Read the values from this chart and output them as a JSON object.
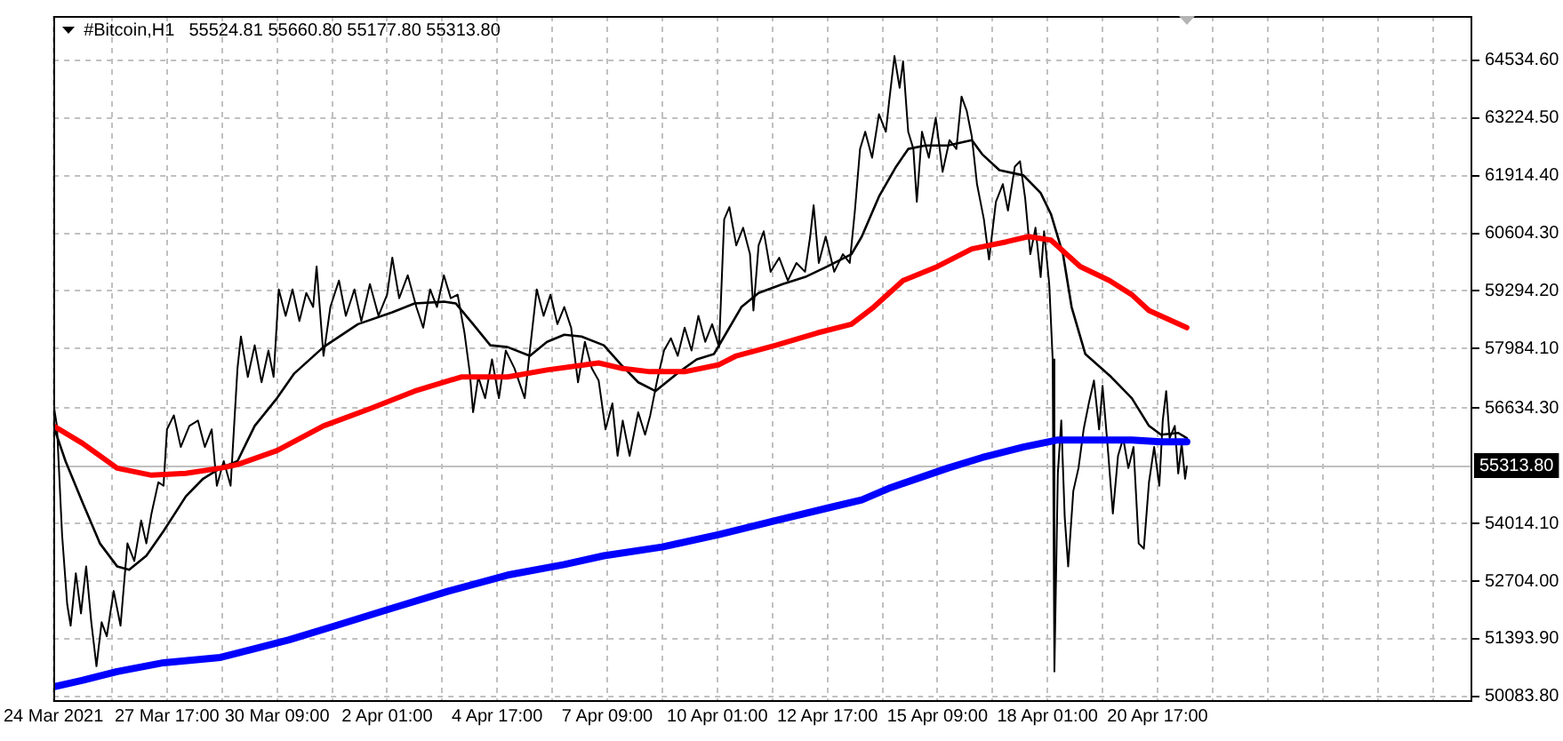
{
  "chart_data": {
    "type": "line",
    "title": "#Bitcoin,H1",
    "subtitle": "55524.81 55660.80 55177.80 55313.80",
    "xlim": [
      "2021-03-24T23:00",
      "2021-04-28T08:00"
    ],
    "xticks": [
      {
        "value": "2021-03-24T23:00",
        "label": "24 Mar 2021"
      },
      {
        "value": "2021-03-26T09:00",
        "label": null
      },
      {
        "value": "2021-03-27T17:00",
        "label": "27 Mar 17:00"
      },
      {
        "value": "2021-03-29T01:00",
        "label": null
      },
      {
        "value": "2021-03-30T09:00",
        "label": "30 Mar 09:00"
      },
      {
        "value": "2021-03-31T17:00",
        "label": null
      },
      {
        "value": "2021-04-02T01:00",
        "label": "2 Apr 01:00"
      },
      {
        "value": "2021-04-03T09:00",
        "label": null
      },
      {
        "value": "2021-04-04T17:00",
        "label": "4 Apr 17:00"
      },
      {
        "value": "2021-04-06T01:00",
        "label": null
      },
      {
        "value": "2021-04-07T09:00",
        "label": "7 Apr 09:00"
      },
      {
        "value": "2021-04-08T17:00",
        "label": null
      },
      {
        "value": "2021-04-10T01:00",
        "label": "10 Apr 01:00"
      },
      {
        "value": "2021-04-11T09:00",
        "label": null
      },
      {
        "value": "2021-04-12T17:00",
        "label": "12 Apr 17:00"
      },
      {
        "value": "2021-04-14T01:00",
        "label": null
      },
      {
        "value": "2021-04-15T09:00",
        "label": "15 Apr 09:00"
      },
      {
        "value": "2021-04-16T17:00",
        "label": null
      },
      {
        "value": "2021-04-18T01:00",
        "label": "18 Apr 01:00"
      },
      {
        "value": "2021-04-19T09:00",
        "label": null
      },
      {
        "value": "2021-04-20T17:00",
        "label": "20 Apr 17:00"
      },
      {
        "value": "2021-04-22T01:00",
        "label": null
      },
      {
        "value": "2021-04-23T09:00",
        "label": null
      },
      {
        "value": "2021-04-24T17:00",
        "label": null
      },
      {
        "value": "2021-04-26T01:00",
        "label": null
      },
      {
        "value": "2021-04-27T09:00",
        "label": null
      }
    ],
    "ylim": [
      49960,
      65540
    ],
    "yticks": [
      {
        "value": 50083.8,
        "label": "50083.80"
      },
      {
        "value": 51393.9,
        "label": "51393.90"
      },
      {
        "value": 52704.0,
        "label": "52704.00"
      },
      {
        "value": 54014.1,
        "label": "54014.10"
      },
      {
        "value": 56634.3,
        "label": "56634.30"
      },
      {
        "value": 57984.1,
        "label": "57984.10"
      },
      {
        "value": 59294.2,
        "label": "59294.20"
      },
      {
        "value": 60604.3,
        "label": "60604.30"
      },
      {
        "value": 61914.4,
        "label": "61914.40"
      },
      {
        "value": 63224.5,
        "label": "63224.50"
      },
      {
        "value": 64534.6,
        "label": "64534.60"
      }
    ],
    "grid": true,
    "legend": false,
    "marker": "none",
    "line_style": "solid",
    "ref_lines": [
      {
        "axis": "y",
        "value": 55313.8,
        "label": "55313.80",
        "color": "#c0c0c0"
      }
    ],
    "series": [
      {
        "color": "#000000",
        "x": [
          "2021-03-24T23:00",
          "2021-03-25T01:00",
          "2021-03-25T04:00",
          "2021-03-25T07:00",
          "2021-03-25T09:00",
          "2021-03-25T12:00",
          "2021-03-25T15:00",
          "2021-03-25T18:00",
          "2021-03-25T21:00",
          "2021-03-26T00:00",
          "2021-03-26T03:00",
          "2021-03-26T06:00",
          "2021-03-26T10:00",
          "2021-03-26T14:00",
          "2021-03-26T18:00",
          "2021-03-26T22:00",
          "2021-03-27T02:00",
          "2021-03-27T05:00",
          "2021-03-27T08:00",
          "2021-03-27T12:00",
          "2021-03-27T15:00",
          "2021-03-27T17:00",
          "2021-03-27T21:00",
          "2021-03-28T01:00",
          "2021-03-28T06:00",
          "2021-03-28T11:00",
          "2021-03-28T15:00",
          "2021-03-28T19:00",
          "2021-03-28T22:00",
          "2021-03-29T02:00",
          "2021-03-29T06:00",
          "2021-03-29T10:00",
          "2021-03-29T12:00",
          "2021-03-29T16:00",
          "2021-03-29T20:00",
          "2021-03-30T00:00",
          "2021-03-30T04:00",
          "2021-03-30T07:00",
          "2021-03-30T10:00",
          "2021-03-30T14:00",
          "2021-03-30T18:00",
          "2021-03-30T22:00",
          "2021-03-31T02:00",
          "2021-03-31T06:00",
          "2021-03-31T08:00",
          "2021-03-31T12:00",
          "2021-03-31T16:00",
          "2021-03-31T21:00",
          "2021-04-01T01:00",
          "2021-04-01T06:00",
          "2021-04-01T10:00",
          "2021-04-01T15:00",
          "2021-04-01T20:00",
          "2021-04-02T01:00",
          "2021-04-02T04:00",
          "2021-04-02T08:00",
          "2021-04-02T13:00",
          "2021-04-02T18:00",
          "2021-04-02T22:00",
          "2021-04-03T02:00",
          "2021-04-03T06:00",
          "2021-04-03T10:00",
          "2021-04-03T14:00",
          "2021-04-03T18:00",
          "2021-04-03T22:00",
          "2021-04-04T01:00",
          "2021-04-04T03:00",
          "2021-04-04T06:00",
          "2021-04-04T10:00",
          "2021-04-04T14:00",
          "2021-04-04T18:00",
          "2021-04-04T22:00",
          "2021-04-05T03:00",
          "2021-04-05T09:00",
          "2021-04-05T12:00",
          "2021-04-05T16:00",
          "2021-04-05T20:00",
          "2021-04-06T00:00",
          "2021-04-06T04:00",
          "2021-04-06T08:00",
          "2021-04-06T12:00",
          "2021-04-06T16:00",
          "2021-04-06T20:00",
          "2021-04-07T00:00",
          "2021-04-07T04:00",
          "2021-04-07T08:00",
          "2021-04-07T12:00",
          "2021-04-07T15:00",
          "2021-04-07T18:00",
          "2021-04-07T22:00",
          "2021-04-08T03:00",
          "2021-04-08T07:00",
          "2021-04-08T10:00",
          "2021-04-08T14:00",
          "2021-04-08T18:00",
          "2021-04-08T22:00",
          "2021-04-09T02:00",
          "2021-04-09T06:00",
          "2021-04-09T10:00",
          "2021-04-09T14:00",
          "2021-04-09T18:00",
          "2021-04-09T22:00",
          "2021-04-10T02:00",
          "2021-04-10T05:00",
          "2021-04-10T08:00",
          "2021-04-10T12:00",
          "2021-04-10T16:00",
          "2021-04-10T20:00",
          "2021-04-10T22:00",
          "2021-04-11T01:00",
          "2021-04-11T04:00",
          "2021-04-11T08:00",
          "2021-04-11T13:00",
          "2021-04-11T18:00",
          "2021-04-11T23:00",
          "2021-04-12T04:00",
          "2021-04-12T07:00",
          "2021-04-12T09:00",
          "2021-04-12T12:00",
          "2021-04-12T16:00",
          "2021-04-12T21:00",
          "2021-04-13T02:00",
          "2021-04-13T06:00",
          "2021-04-13T09:00",
          "2021-04-13T12:00",
          "2021-04-13T15:00",
          "2021-04-13T19:00",
          "2021-04-13T23:00",
          "2021-04-14T03:00",
          "2021-04-14T05:00",
          "2021-04-14T08:00",
          "2021-04-14T11:00",
          "2021-04-14T13:00",
          "2021-04-14T16:00",
          "2021-04-14T19:00",
          "2021-04-14T21:00",
          "2021-04-15T00:00",
          "2021-04-15T04:00",
          "2021-04-15T08:00",
          "2021-04-15T12:00",
          "2021-04-15T16:00",
          "2021-04-15T20:00",
          "2021-04-15T23:00",
          "2021-04-16T02:00",
          "2021-04-16T05:00",
          "2021-04-16T08:00",
          "2021-04-16T12:00",
          "2021-04-16T15:00",
          "2021-04-16T19:00",
          "2021-04-16T23:00",
          "2021-04-17T02:00",
          "2021-04-17T06:00",
          "2021-04-17T09:00",
          "2021-04-17T12:00",
          "2021-04-17T15:00",
          "2021-04-17T18:00",
          "2021-04-17T21:00",
          "2021-04-17T23:00",
          "2021-04-18T02:00",
          "2021-04-18T04:00",
          "2021-04-18T05:00",
          "2021-04-18T07:00",
          "2021-04-18T09:00",
          "2021-04-18T11:00",
          "2021-04-18T13:00",
          "2021-04-18T16:00",
          "2021-04-18T19:00",
          "2021-04-18T22:00",
          "2021-04-19T01:00",
          "2021-04-19T04:00",
          "2021-04-19T07:00",
          "2021-04-19T09:00",
          "2021-04-19T12:00",
          "2021-04-19T15:00",
          "2021-04-19T18:00",
          "2021-04-19T21:00",
          "2021-04-20T00:00",
          "2021-04-20T03:00",
          "2021-04-20T06:00",
          "2021-04-20T09:00",
          "2021-04-20T12:00",
          "2021-04-20T15:00",
          "2021-04-20T18:00",
          "2021-04-20T20:00",
          "2021-04-20T22:00",
          "2021-04-21T00:00",
          "2021-04-21T03:00",
          "2021-04-21T05:00",
          "2021-04-21T07:00",
          "2021-04-21T09:00",
          "2021-04-21T10:00"
        ],
        "values": [
          56740,
          56230,
          53760,
          52170,
          51690,
          52880,
          51970,
          53040,
          51770,
          50770,
          51770,
          51450,
          52480,
          51690,
          53560,
          53160,
          54080,
          53560,
          54240,
          54950,
          54870,
          56150,
          56470,
          55750,
          56230,
          56350,
          55750,
          56150,
          54870,
          55430,
          54870,
          57540,
          58260,
          57340,
          58060,
          57220,
          57940,
          57340,
          59330,
          58730,
          59330,
          58610,
          59250,
          58930,
          59850,
          57820,
          58930,
          59530,
          58730,
          59330,
          58610,
          59450,
          58730,
          59210,
          60050,
          59130,
          59650,
          58930,
          58460,
          59330,
          58930,
          59650,
          59130,
          59210,
          58340,
          57460,
          56540,
          57340,
          56860,
          57740,
          56860,
          57940,
          57540,
          56860,
          57940,
          59330,
          58730,
          59210,
          58540,
          58930,
          58460,
          57220,
          58140,
          57540,
          57260,
          56150,
          56740,
          55550,
          56350,
          55550,
          56540,
          56030,
          56470,
          57260,
          57940,
          58220,
          57820,
          58460,
          57940,
          58730,
          58140,
          58540,
          58020,
          60920,
          61200,
          60330,
          60730,
          60130,
          58850,
          60330,
          60650,
          59730,
          60050,
          59530,
          59930,
          59730,
          60530,
          61240,
          59930,
          60530,
          59730,
          60130,
          59930,
          61120,
          62520,
          62910,
          62320,
          63310,
          62910,
          63630,
          64630,
          63910,
          64510,
          62910,
          62520,
          61320,
          62910,
          62320,
          63230,
          62000,
          62720,
          62520,
          63710,
          63390,
          62800,
          61720,
          60920,
          60010,
          61320,
          61720,
          61120,
          62120,
          62240,
          61400,
          60130,
          60730,
          59610,
          60650,
          59450,
          57740,
          50650,
          55150,
          56350,
          54160,
          53040,
          54750,
          55270,
          56150,
          56740,
          57260,
          56150,
          57140,
          55750,
          54240,
          55550,
          55950,
          55270,
          55750,
          53560,
          53440,
          54950,
          55750,
          54870,
          56350,
          57020,
          55950,
          56230,
          55150,
          55830,
          55030,
          55310
        ]
      },
      {
        "color": "#000000",
        "x": [
          "2021-03-24T23:00",
          "2021-03-25T06:00",
          "2021-03-25T16:00",
          "2021-03-26T02:00",
          "2021-03-26T12:00",
          "2021-03-26T19:00",
          "2021-03-27T05:00",
          "2021-03-27T15:00",
          "2021-03-28T04:00",
          "2021-03-28T14:00",
          "2021-03-29T00:00",
          "2021-03-29T10:00",
          "2021-03-29T20:00",
          "2021-03-30T09:00",
          "2021-03-30T19:00",
          "2021-03-31T12:00",
          "2021-04-01T08:00",
          "2021-04-02T04:00",
          "2021-04-02T17:00",
          "2021-04-03T10:00",
          "2021-04-03T17:00",
          "2021-04-04T03:00",
          "2021-04-04T13:00",
          "2021-04-04T23:00",
          "2021-04-05T12:00",
          "2021-04-05T22:00",
          "2021-04-06T08:00",
          "2021-04-06T18:00",
          "2021-04-07T07:00",
          "2021-04-07T17:00",
          "2021-04-08T03:00",
          "2021-04-08T13:00",
          "2021-04-09T03:00",
          "2021-04-09T13:00",
          "2021-04-09T23:00",
          "2021-04-10T05:00",
          "2021-04-10T15:00",
          "2021-04-11T01:00",
          "2021-04-11T15:00",
          "2021-04-12T04:00",
          "2021-04-12T17:00",
          "2021-04-13T07:00",
          "2021-04-13T13:00",
          "2021-04-13T23:00",
          "2021-04-14T09:00",
          "2021-04-14T16:00",
          "2021-04-15T02:00",
          "2021-04-15T15:00",
          "2021-04-16T05:00",
          "2021-04-16T11:00",
          "2021-04-16T21:00",
          "2021-04-17T11:00",
          "2021-04-17T21:00",
          "2021-04-18T03:00",
          "2021-04-18T10:00",
          "2021-04-18T15:00",
          "2021-04-18T23:00",
          "2021-04-19T06:00",
          "2021-04-19T14:00",
          "2021-04-20T02:00",
          "2021-04-20T12:00",
          "2021-04-20T19:00",
          "2021-04-21T05:00",
          "2021-04-21T10:00"
        ],
        "values": [
          56230,
          55430,
          54480,
          53560,
          53040,
          52960,
          53280,
          53840,
          54630,
          55030,
          55270,
          55430,
          56230,
          56860,
          57420,
          58020,
          58540,
          58810,
          59010,
          59050,
          59010,
          58540,
          58060,
          58020,
          57820,
          58140,
          58300,
          58260,
          58060,
          57620,
          57220,
          57020,
          57460,
          57740,
          57860,
          58260,
          58930,
          59250,
          59450,
          59610,
          59850,
          60130,
          60530,
          61440,
          62120,
          62520,
          62600,
          62600,
          62720,
          62400,
          62040,
          61920,
          61520,
          61040,
          60130,
          58930,
          57860,
          57620,
          57340,
          56860,
          56230,
          56030,
          56070,
          55950
        ]
      },
      {
        "color": "#ff0000",
        "x": [
          "2021-03-24T23:00",
          "2021-03-25T16:00",
          "2021-03-26T12:00",
          "2021-03-27T08:00",
          "2021-03-28T04:00",
          "2021-03-29T00:00",
          "2021-03-29T10:00",
          "2021-03-30T09:00",
          "2021-03-31T12:00",
          "2021-04-01T15:00",
          "2021-04-02T17:00",
          "2021-04-03T20:00",
          "2021-04-04T23:00",
          "2021-04-05T22:00",
          "2021-04-07T04:00",
          "2021-04-07T17:00",
          "2021-04-08T10:00",
          "2021-04-09T06:00",
          "2021-04-10T02:00",
          "2021-04-10T12:00",
          "2021-04-11T11:00",
          "2021-04-12T11:00",
          "2021-04-13T07:00",
          "2021-04-13T20:00",
          "2021-04-14T13:00",
          "2021-04-15T09:00",
          "2021-04-16T05:00",
          "2021-04-17T01:00",
          "2021-04-17T14:00",
          "2021-04-18T03:00",
          "2021-04-18T20:00",
          "2021-04-19T13:00",
          "2021-04-20T02:00",
          "2021-04-20T12:00",
          "2021-04-21T10:00"
        ],
        "values": [
          56230,
          55830,
          55270,
          55110,
          55150,
          55270,
          55350,
          55670,
          56230,
          56620,
          57020,
          57340,
          57340,
          57500,
          57660,
          57540,
          57460,
          57460,
          57620,
          57820,
          58060,
          58340,
          58540,
          58930,
          59530,
          59850,
          60250,
          60410,
          60530,
          60450,
          59850,
          59530,
          59210,
          58850,
          58460
        ]
      },
      {
        "color": "#0000ff",
        "x": [
          "2021-03-24T23:00",
          "2021-03-25T16:00",
          "2021-03-26T12:00",
          "2021-03-27T15:00",
          "2021-03-29T00:00",
          "2021-03-29T20:00",
          "2021-03-30T16:00",
          "2021-03-31T19:00",
          "2021-04-02T04:00",
          "2021-04-03T13:00",
          "2021-04-04T23:00",
          "2021-04-06T08:00",
          "2021-04-07T07:00",
          "2021-04-08T17:00",
          "2021-04-10T02:00",
          "2021-04-11T11:00",
          "2021-04-12T21:00",
          "2021-04-13T13:00",
          "2021-04-14T06:00",
          "2021-04-15T15:00",
          "2021-04-16T11:00",
          "2021-04-17T11:00",
          "2021-04-18T07:00",
          "2021-04-18T17:00",
          "2021-04-20T02:00",
          "2021-04-20T19:00",
          "2021-04-21T10:00"
        ],
        "values": [
          50300,
          50450,
          50650,
          50850,
          50970,
          51170,
          51370,
          51690,
          52090,
          52480,
          52840,
          53080,
          53280,
          53480,
          53760,
          54080,
          54400,
          54550,
          54830,
          55270,
          55510,
          55750,
          55910,
          55910,
          55910,
          55870,
          55870
        ]
      }
    ]
  }
}
